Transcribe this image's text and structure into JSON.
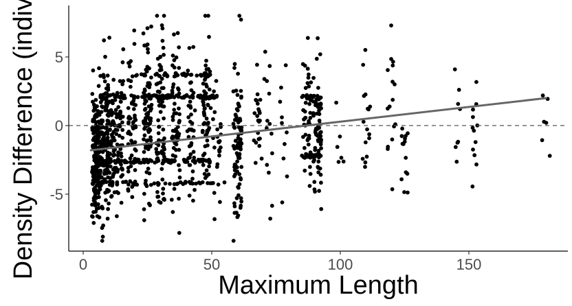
{
  "chart_data": {
    "type": "scatter",
    "title": "",
    "xlabel": "Maximum Length",
    "ylabel": "Density Difference (individ",
    "xlim": [
      -2,
      188
    ],
    "ylim": [
      -9,
      9
    ],
    "x_ticks": [
      0,
      50,
      100,
      150
    ],
    "x_tick_labels": [
      "0",
      "50",
      "100",
      "150"
    ],
    "y_ticks": [
      -5,
      0,
      5
    ],
    "y_tick_labels": [
      "-5",
      "0",
      "5"
    ],
    "grid": false,
    "legend": "none",
    "reference_line": {
      "y": 0,
      "style": "dashed",
      "color": "#555555"
    },
    "trend_line": {
      "type": "linear",
      "x": [
        3,
        180
      ],
      "y": [
        -1.8,
        2.0
      ],
      "color": "#666666"
    },
    "point_color": "#000000",
    "clusters": [
      {
        "x": 5,
        "mean": -2.2,
        "sd": 2.4,
        "n": 180
      },
      {
        "x": 8,
        "mean": -1.5,
        "sd": 2.5,
        "n": 120
      },
      {
        "x": 11,
        "mean": -0.8,
        "sd": 2.6,
        "n": 80
      },
      {
        "x": 14,
        "mean": -0.3,
        "sd": 2.8,
        "n": 60
      },
      {
        "x": 19,
        "mean": 0.0,
        "sd": 2.8,
        "n": 60
      },
      {
        "x": 25,
        "mean": 0.4,
        "sd": 3.0,
        "n": 90
      },
      {
        "x": 30,
        "mean": -0.2,
        "sd": 3.1,
        "n": 80
      },
      {
        "x": 36,
        "mean": 0.3,
        "sd": 2.8,
        "n": 60
      },
      {
        "x": 42,
        "mean": -0.5,
        "sd": 2.7,
        "n": 45
      },
      {
        "x": 48,
        "mean": 0.6,
        "sd": 2.7,
        "n": 60
      },
      {
        "x": 52,
        "mean": -0.8,
        "sd": 2.4,
        "n": 25
      },
      {
        "x": 60,
        "mean": -1.4,
        "sd": 3.0,
        "n": 90
      },
      {
        "x": 68,
        "mean": 0.0,
        "sd": 2.7,
        "n": 22
      },
      {
        "x": 72,
        "mean": -0.5,
        "sd": 3.2,
        "n": 14
      },
      {
        "x": 78,
        "mean": -1.0,
        "sd": 2.5,
        "n": 10
      },
      {
        "x": 87,
        "mean": 0.4,
        "sd": 2.5,
        "n": 45
      },
      {
        "x": 91,
        "mean": -0.6,
        "sd": 2.6,
        "n": 70
      },
      {
        "x": 100,
        "mean": -1.0,
        "sd": 1.8,
        "n": 6
      },
      {
        "x": 110,
        "mean": 0.0,
        "sd": 2.2,
        "n": 16
      },
      {
        "x": 120,
        "mean": 0.2,
        "sd": 2.6,
        "n": 16
      },
      {
        "x": 125,
        "mean": -1.6,
        "sd": 2.2,
        "n": 14
      },
      {
        "x": 145,
        "mean": 0.8,
        "sd": 2.0,
        "n": 8
      },
      {
        "x": 152,
        "mean": -0.6,
        "sd": 2.4,
        "n": 12
      },
      {
        "x": 180,
        "mean": 0.6,
        "sd": 1.5,
        "n": 6
      }
    ],
    "bands": [
      {
        "x_from": 5,
        "x_to": 52,
        "y": 2.1,
        "n": 90
      },
      {
        "x_from": 85,
        "x_to": 92,
        "y": 2.1,
        "n": 18
      },
      {
        "x_from": 5,
        "x_to": 50,
        "y": -2.6,
        "n": 80
      },
      {
        "x_from": 20,
        "x_to": 50,
        "y": 3.7,
        "n": 40
      },
      {
        "x_from": 85,
        "x_to": 92,
        "y": -2.2,
        "n": 18
      },
      {
        "x_from": 5,
        "x_to": 60,
        "y": -4.2,
        "n": 40
      }
    ]
  }
}
